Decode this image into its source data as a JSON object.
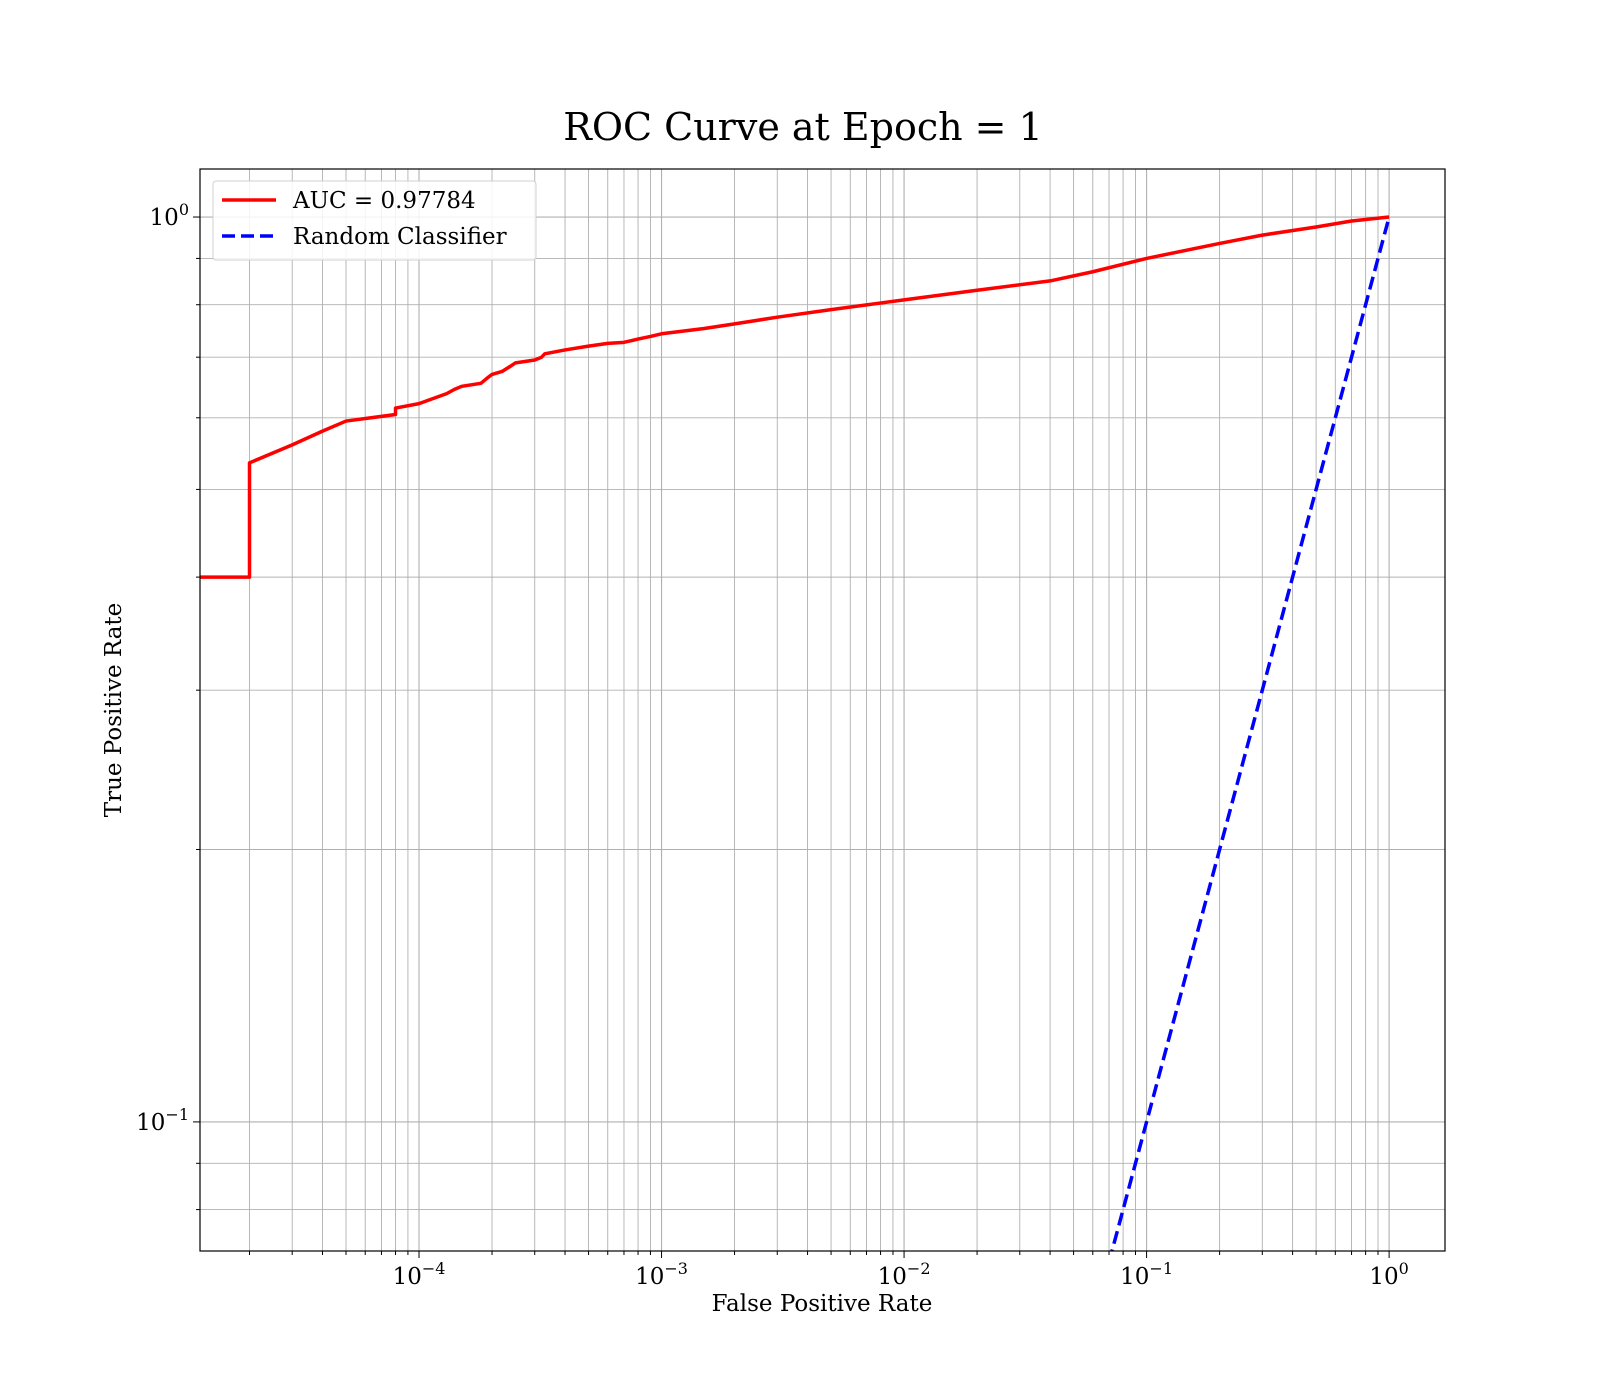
{
  "chart_data": {
    "type": "line",
    "title": "ROC Curve at Epoch = 1",
    "xlabel": "False Positive Rate",
    "ylabel": "True Positive Rate",
    "xscale": "log",
    "yscale": "log",
    "xlim": [
      1.25e-05,
      1.7
    ],
    "ylim": [
      0.072,
      1.13
    ],
    "grid": true,
    "legend_position": "top-left",
    "x_ticks": [
      {
        "base": "10",
        "exp": "−4",
        "value": 0.0001
      },
      {
        "base": "10",
        "exp": "−3",
        "value": 0.001
      },
      {
        "base": "10",
        "exp": "−2",
        "value": 0.01
      },
      {
        "base": "10",
        "exp": "−1",
        "value": 0.1
      },
      {
        "base": "10",
        "exp": "0",
        "value": 1
      }
    ],
    "y_ticks": [
      {
        "base": "10",
        "exp": "−1",
        "value": 0.1
      },
      {
        "base": "10",
        "exp": "0",
        "value": 1
      }
    ],
    "series": [
      {
        "name": "AUC = 0.97784",
        "color": "#ff0000",
        "style": "solid",
        "x": [
          1.25e-05,
          2e-05,
          2e-05,
          3e-05,
          4e-05,
          5e-05,
          8e-05,
          8e-05,
          0.0001,
          0.00013,
          0.00014,
          0.00015,
          0.00018,
          0.00019,
          0.0002,
          0.00022,
          0.00024,
          0.00025,
          0.0003,
          0.00032,
          0.00033,
          0.0004,
          0.0005,
          0.0006,
          0.0007,
          0.00075,
          0.0008,
          0.0009,
          0.001,
          0.0015,
          0.002,
          0.003,
          0.005,
          0.01,
          0.02,
          0.04,
          0.06,
          0.1,
          0.2,
          0.3,
          0.5,
          0.7,
          1.0
        ],
        "y": [
          0.4,
          0.4,
          0.535,
          0.56,
          0.58,
          0.595,
          0.605,
          0.615,
          0.622,
          0.638,
          0.645,
          0.65,
          0.655,
          0.663,
          0.67,
          0.675,
          0.685,
          0.69,
          0.695,
          0.7,
          0.706,
          0.713,
          0.72,
          0.725,
          0.727,
          0.73,
          0.733,
          0.738,
          0.743,
          0.753,
          0.762,
          0.775,
          0.79,
          0.81,
          0.83,
          0.85,
          0.87,
          0.9,
          0.935,
          0.955,
          0.975,
          0.99,
          1.0
        ]
      },
      {
        "name": "Random Classifier",
        "color": "#0000ff",
        "style": "dashed",
        "x": [
          0.07,
          1.0
        ],
        "y": [
          0.07,
          1.0
        ]
      }
    ]
  }
}
